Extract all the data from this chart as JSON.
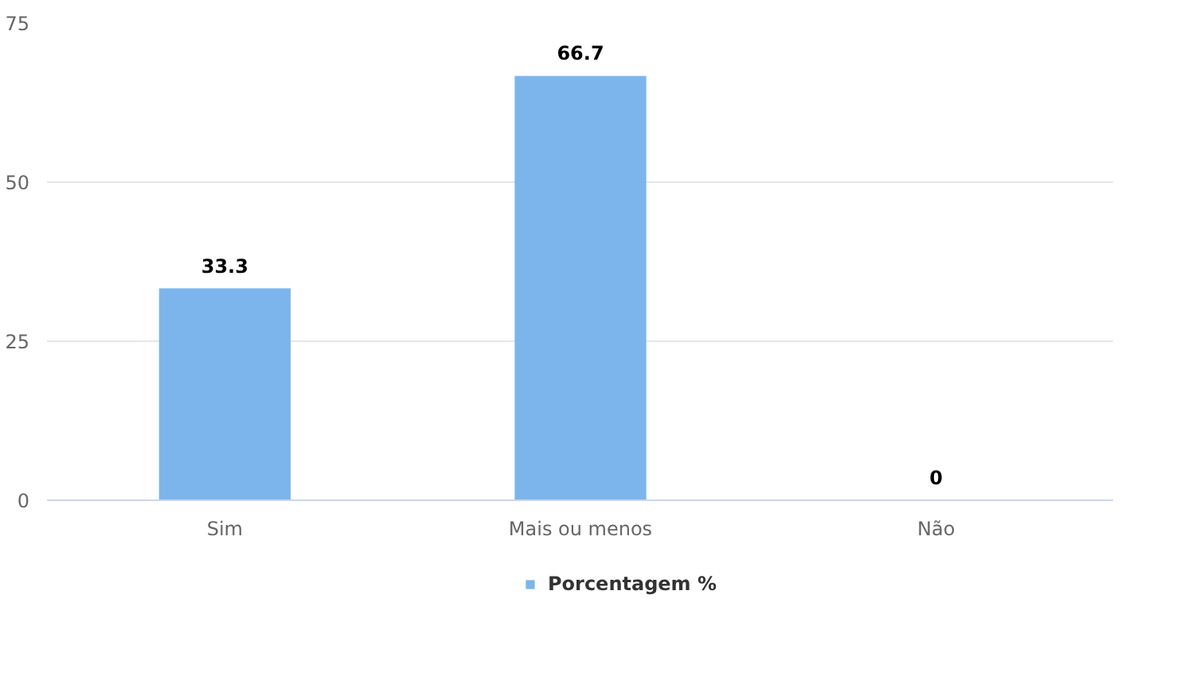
{
  "chart_data": {
    "type": "bar",
    "categories": [
      "Sim",
      "Mais ou menos",
      "Não"
    ],
    "series": [
      {
        "name": "Porcentagem %",
        "color": "#7cb5ec",
        "values": [
          33.3,
          66.7,
          0
        ]
      }
    ],
    "ylim": [
      0,
      75
    ],
    "yticks": [
      0,
      25,
      50,
      75
    ],
    "grid": "y",
    "legend": "bottom",
    "data_labels": true
  }
}
